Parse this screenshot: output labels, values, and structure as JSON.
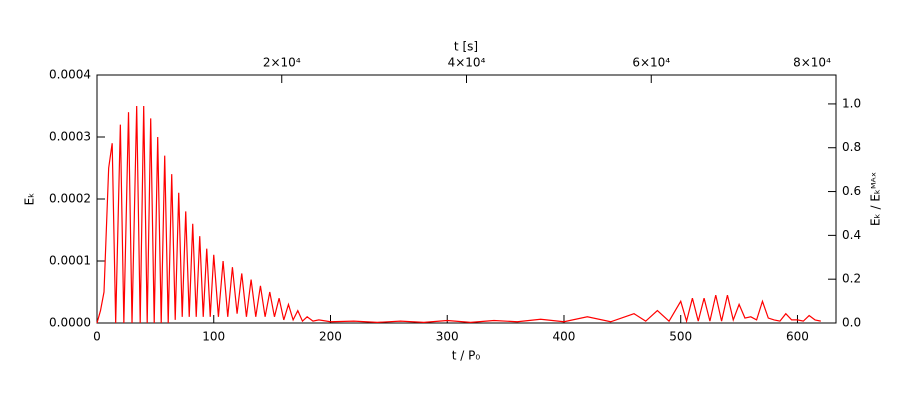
{
  "chart_data": {
    "type": "line",
    "xlabel": "t / P₀",
    "ylabel": "Eₖ",
    "y2label": "Eₖ / Eₖᴹᴬˣ",
    "x2label": "t [s]",
    "xlim": [
      0,
      633
    ],
    "xticks": [
      0,
      100,
      200,
      300,
      400,
      500,
      600
    ],
    "x2lim": [
      0,
      80000
    ],
    "x2ticks": [
      {
        "value": 20000,
        "label": "2×10⁴"
      },
      {
        "value": 40000,
        "label": "4×10⁴"
      },
      {
        "value": 60000,
        "label": "6×10⁴"
      },
      {
        "value": 80000,
        "label": "8×10⁴"
      }
    ],
    "ylim": [
      0,
      0.0004
    ],
    "yticks": [
      {
        "value": 0,
        "label": "0.0000"
      },
      {
        "value": 0.0001,
        "label": "0.0001"
      },
      {
        "value": 0.0002,
        "label": "0.0002"
      },
      {
        "value": 0.0003,
        "label": "0.0003"
      },
      {
        "value": 0.0004,
        "label": "0.0004"
      }
    ],
    "y2lim": [
      0,
      1.132
    ],
    "y2ticks": [
      {
        "value": 0,
        "label": "0.0"
      },
      {
        "value": 0.2,
        "label": "0.2"
      },
      {
        "value": 0.4,
        "label": "0.4"
      },
      {
        "value": 0.6,
        "label": "0.6"
      },
      {
        "value": 0.8,
        "label": "0.8"
      },
      {
        "value": 1,
        "label": "1.0"
      }
    ],
    "x": [
      0,
      3,
      6,
      10,
      13,
      16,
      20,
      23,
      27,
      30,
      34,
      37,
      40,
      43,
      46,
      49,
      52,
      55,
      58,
      61,
      64,
      67,
      70,
      73,
      76,
      79,
      82,
      85,
      88,
      91,
      94,
      97,
      100,
      104,
      108,
      112,
      116,
      120,
      124,
      128,
      132,
      136,
      140,
      144,
      148,
      152,
      156,
      160,
      164,
      168,
      172,
      176,
      180,
      185,
      190,
      200,
      220,
      240,
      260,
      280,
      300,
      320,
      340,
      360,
      380,
      400,
      420,
      440,
      460,
      470,
      480,
      490,
      500,
      505,
      510,
      515,
      520,
      525,
      530,
      535,
      540,
      545,
      550,
      555,
      560,
      565,
      570,
      575,
      580,
      585,
      590,
      595,
      600,
      605,
      610,
      615,
      620
    ],
    "series": [
      {
        "color": "#ff0000",
        "values": [
          0,
          2e-05,
          5e-05,
          0.00025,
          0.00029,
          0,
          0.00032,
          0,
          0.00034,
          0,
          0.00035,
          0,
          0.00035,
          0,
          0.00033,
          0,
          0.0003,
          0,
          0.00027,
          0,
          0.00024,
          5e-06,
          0.00021,
          1e-05,
          0.00018,
          1e-05,
          0.00016,
          1e-05,
          0.00014,
          1e-05,
          0.00012,
          1e-05,
          0.00011,
          1e-05,
          0.0001,
          1e-05,
          9e-05,
          1.5e-05,
          8e-05,
          1e-05,
          7e-05,
          1e-05,
          6e-05,
          1e-05,
          5e-05,
          1e-05,
          4e-05,
          5e-06,
          3e-05,
          5e-06,
          2e-05,
          3e-06,
          1e-05,
          3e-06,
          5e-06,
          2e-06,
          3e-06,
          1e-06,
          3e-06,
          1e-06,
          4e-06,
          1e-06,
          4e-06,
          2e-06,
          6e-06,
          2e-06,
          1e-05,
          2e-06,
          1.5e-05,
          3e-06,
          2e-05,
          3e-06,
          3.5e-05,
          3e-06,
          4e-05,
          3e-06,
          4e-05,
          3e-06,
          4.5e-05,
          3e-06,
          4.5e-05,
          5e-06,
          3e-05,
          8e-06,
          1e-05,
          5e-06,
          3.5e-05,
          8e-06,
          5e-06,
          3e-06,
          1.5e-05,
          5e-06,
          5e-06,
          3e-06,
          1.2e-05,
          5e-06,
          3e-06
        ]
      }
    ]
  }
}
